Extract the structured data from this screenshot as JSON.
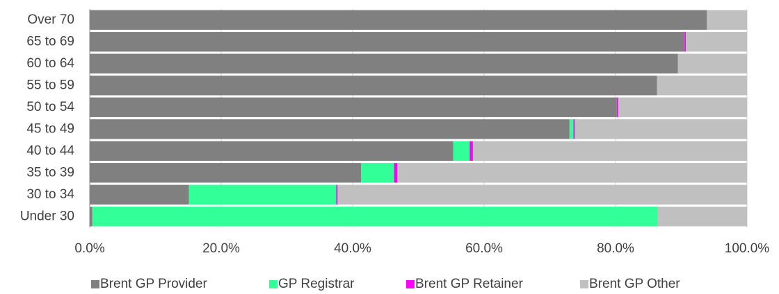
{
  "chart_data": {
    "type": "bar",
    "orientation": "horizontal",
    "stacked": true,
    "categories": [
      "Over 70",
      "65 to 69",
      "60 to 64",
      "55 to 59",
      "50 to 54",
      "45 to 49",
      "40 to 44",
      "35 to 39",
      "30 to 34",
      "Under 30"
    ],
    "series": [
      {
        "name": "Brent GP Provider",
        "color": "#808080",
        "values": [
          93.9,
          90.5,
          89.5,
          86.3,
          80.2,
          73.0,
          55.3,
          41.3,
          15.1,
          0.4
        ]
      },
      {
        "name": "GP Registrar",
        "color": "#33ff99",
        "values": [
          0,
          0,
          0,
          0,
          0,
          0.6,
          2.5,
          5.0,
          22.4,
          86.0
        ]
      },
      {
        "name": "Brent GP Retainer",
        "color": "#ff00ff",
        "values": [
          0,
          0.2,
          0,
          0,
          0.2,
          0.2,
          0.5,
          0.5,
          0.2,
          0
        ]
      },
      {
        "name": "Brent GP Other",
        "color": "#c0c0c0",
        "values": [
          6.1,
          9.3,
          10.5,
          13.7,
          19.6,
          26.2,
          41.7,
          53.2,
          62.3,
          13.6
        ]
      }
    ],
    "xlim": [
      0,
      100
    ],
    "xticks": [
      {
        "value": 0,
        "label": "0.0%"
      },
      {
        "value": 20,
        "label": "20.0%"
      },
      {
        "value": 40,
        "label": "40.0%"
      },
      {
        "value": 60,
        "label": "60.0%"
      },
      {
        "value": 80,
        "label": "80.0%"
      },
      {
        "value": 100,
        "label": "100.0%"
      }
    ],
    "grid": true,
    "legend": "bottom"
  }
}
